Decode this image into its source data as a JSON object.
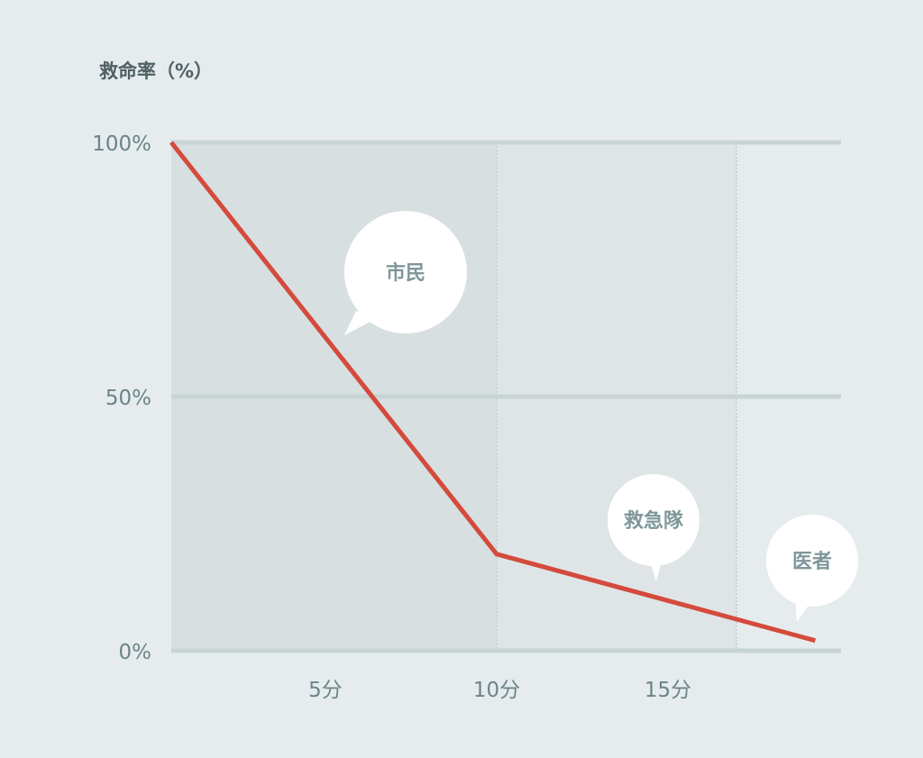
{
  "chart_data": {
    "type": "line",
    "title": "",
    "ylabel": "救命率（%）",
    "xlabel": "",
    "xlim": [
      0.5,
      20.5
    ],
    "ylim": [
      0,
      100
    ],
    "y_ticks": [
      {
        "value": 0,
        "label": "0%"
      },
      {
        "value": 50,
        "label": "50%"
      },
      {
        "value": 100,
        "label": "100%"
      }
    ],
    "x_ticks": [
      {
        "value": 5,
        "label": "5分"
      },
      {
        "value": 10,
        "label": "10分"
      },
      {
        "value": 15,
        "label": "15分"
      }
    ],
    "series": [
      {
        "x": [
          0.5,
          10,
          19.3
        ],
        "y": [
          100,
          19,
          2
        ],
        "color": "#d44a3c"
      }
    ],
    "regions": [
      {
        "label": "市民",
        "from": 0.5,
        "to": 10,
        "color": "#d7dfe0"
      },
      {
        "label": "救急隊",
        "from": 10,
        "to": 17,
        "color": "#dfe5e7"
      },
      {
        "label": "医者",
        "from": 17,
        "to": 20.5,
        "color": "#e6ecee"
      }
    ],
    "grid": true,
    "legend": "none"
  }
}
